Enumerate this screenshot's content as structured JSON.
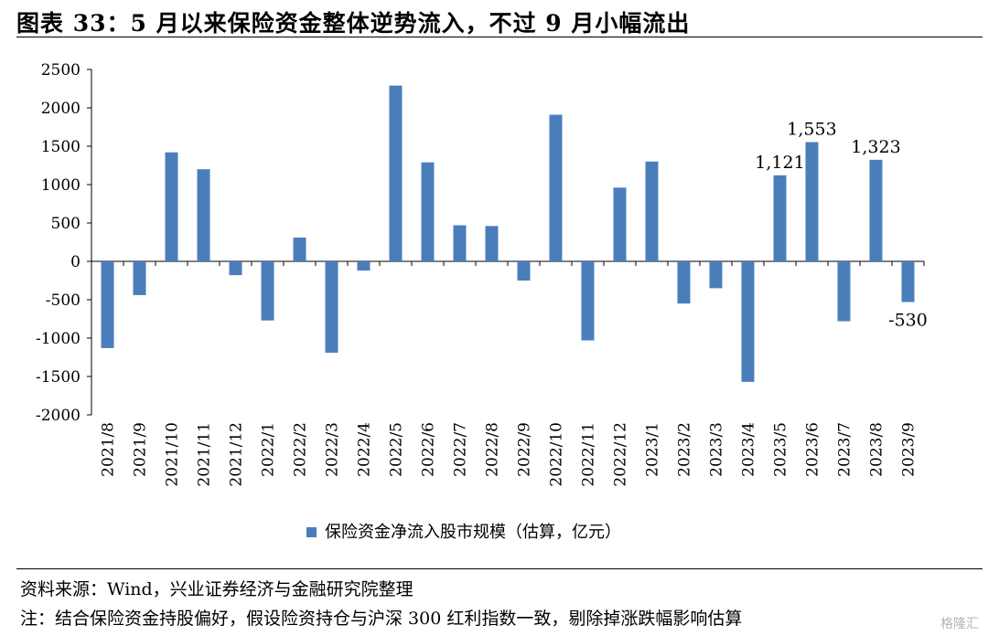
{
  "header": {
    "title": "图表 33：5 月以来保险资金整体逆势流入，不过 9 月小幅流出"
  },
  "footer": {
    "source": "资料来源：Wind，兴业证券经济与金融研究院整理",
    "note": "注：结合保险资金持股偏好，假设险资持仓与沪深 300 红利指数一致，剔除掉涨跌幅影响估算",
    "watermark": "格隆汇"
  },
  "chart_data": {
    "type": "bar",
    "title": "",
    "xlabel": "",
    "ylabel": "",
    "ylim": [
      -2000,
      2500
    ],
    "yticks": [
      -2000,
      -1500,
      -1000,
      -500,
      0,
      500,
      1000,
      1500,
      2000,
      2500
    ],
    "grid": false,
    "legend_position": "bottom",
    "bar_color": "#4A7EBB",
    "categories": [
      "2021/8",
      "2021/9",
      "2021/10",
      "2021/11",
      "2021/12",
      "2022/1",
      "2022/2",
      "2022/3",
      "2022/4",
      "2022/5",
      "2022/6",
      "2022/7",
      "2022/8",
      "2022/9",
      "2022/10",
      "2022/11",
      "2022/12",
      "2023/1",
      "2023/2",
      "2023/3",
      "2023/4",
      "2023/5",
      "2023/6",
      "2023/7",
      "2023/8",
      "2023/9"
    ],
    "series": [
      {
        "name": "保险资金净流入股市规模（估算，亿元）",
        "values": [
          -1130,
          -440,
          1420,
          1200,
          -180,
          -770,
          310,
          -1190,
          -120,
          2290,
          1290,
          470,
          460,
          -250,
          1910,
          -1030,
          960,
          1300,
          -550,
          -350,
          -1570,
          1121,
          1553,
          -780,
          1323,
          -530
        ]
      }
    ],
    "data_labels": [
      {
        "category": "2023/5",
        "text": "1,121"
      },
      {
        "category": "2023/6",
        "text": "1,553"
      },
      {
        "category": "2023/8",
        "text": "1,323"
      },
      {
        "category": "2023/9",
        "text": "-530"
      }
    ]
  }
}
